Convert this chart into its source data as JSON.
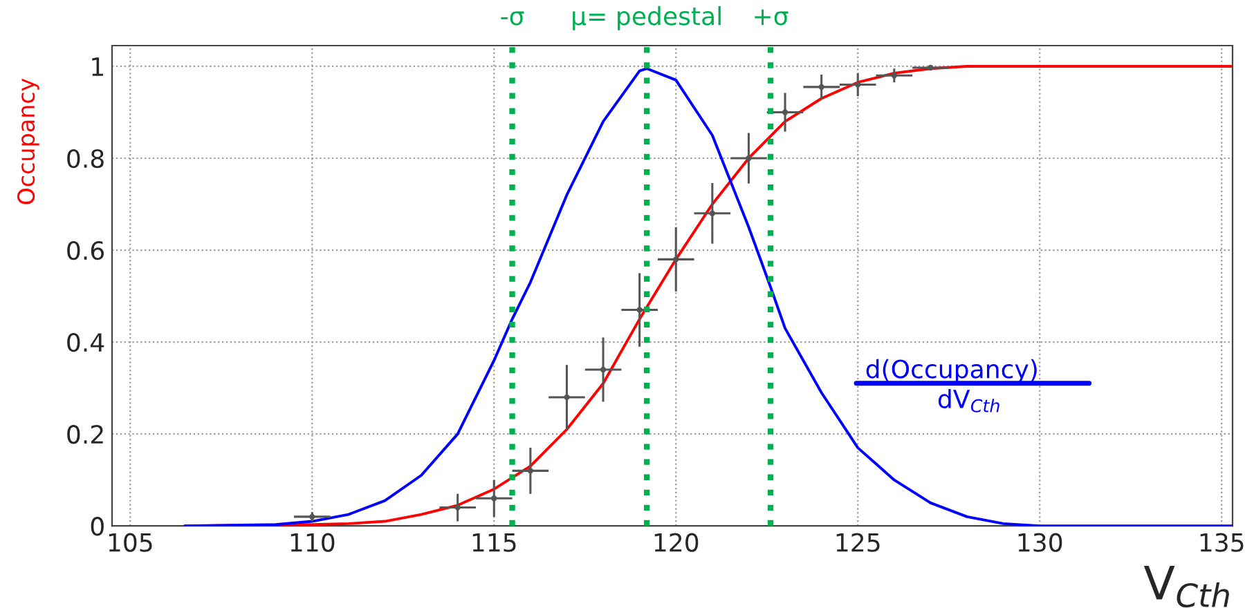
{
  "chart_data": {
    "type": "line",
    "xlabel": "V$_{Cth}$",
    "ylabel": "Occupancy",
    "xlim": [
      104.5,
      135.3
    ],
    "ylim": [
      0,
      1.045
    ],
    "xticks": [
      105,
      110,
      115,
      120,
      125,
      130,
      135
    ],
    "yticks": [
      0,
      {
        "value": 0.2,
        "label": "0.2"
      },
      {
        "value": 0.4,
        "label": "0.4"
      },
      {
        "value": 0.6,
        "label": "0.6"
      },
      {
        "value": 0.8,
        "label": "0.8"
      },
      1
    ],
    "grid": true,
    "legend": false,
    "series": [
      {
        "color": "#ff0000",
        "line_style": "solid",
        "x": [
          106.5,
          110,
          111,
          112,
          113,
          114,
          115,
          116,
          117,
          118,
          119,
          120,
          121,
          122,
          123,
          124,
          125,
          126,
          127,
          128,
          130,
          135.3
        ],
        "values": [
          0,
          0.003,
          0.005,
          0.01,
          0.025,
          0.045,
          0.08,
          0.13,
          0.21,
          0.31,
          0.45,
          0.58,
          0.7,
          0.8,
          0.88,
          0.93,
          0.965,
          0.985,
          0.995,
          1,
          1,
          1
        ]
      },
      {
        "color": "#0000ff",
        "line_style": "solid",
        "x": [
          106.5,
          109,
          110,
          111,
          112,
          113,
          114,
          115,
          115.5,
          116,
          117,
          118,
          119,
          119.2,
          120,
          121,
          122,
          122.6,
          123,
          124,
          125,
          126,
          127,
          128,
          129,
          130,
          135.3
        ],
        "values": [
          0,
          0.003,
          0.01,
          0.025,
          0.055,
          0.11,
          0.2,
          0.36,
          0.45,
          0.53,
          0.72,
          0.88,
          0.99,
          0.995,
          0.97,
          0.85,
          0.65,
          0.52,
          0.43,
          0.29,
          0.17,
          0.1,
          0.05,
          0.02,
          0.005,
          0,
          0
        ]
      },
      {
        "type": "scatter",
        "color": "#555555",
        "x": [
          110,
          114,
          115,
          116,
          117,
          118,
          119,
          120,
          121,
          122,
          123,
          124,
          125,
          126,
          127
        ],
        "values": [
          0.02,
          0.04,
          0.06,
          0.12,
          0.28,
          0.34,
          0.47,
          0.58,
          0.68,
          0.8,
          0.9,
          0.955,
          0.96,
          0.98,
          0.997
        ],
        "errors": [
          0.01,
          0.03,
          0.04,
          0.05,
          0.07,
          0.07,
          0.08,
          0.07,
          0.066,
          0.055,
          0.042,
          0.027,
          0.025,
          0.015,
          0.005
        ],
        "xerrors": [
          0.5,
          0.5,
          0.5,
          0.5,
          0.5,
          0.5,
          0.5,
          0.5,
          0.5,
          0.5,
          0.5,
          0.5,
          0.5,
          0.5,
          0.5
        ]
      }
    ],
    "ref_lines": [
      {
        "axis": "x",
        "value": 115.5,
        "label": "-σ",
        "color": "#00b050",
        "line_style": "dotted"
      },
      {
        "axis": "x",
        "value": 119.2,
        "label": "μ= pedestal",
        "color": "#00b050",
        "line_style": "dotted"
      },
      {
        "axis": "x",
        "value": 122.6,
        "label": "+σ",
        "color": "#00b050",
        "line_style": "dotted"
      }
    ],
    "annotations": [
      "d(Occupancy)",
      "dV$_{Cth}$"
    ]
  }
}
